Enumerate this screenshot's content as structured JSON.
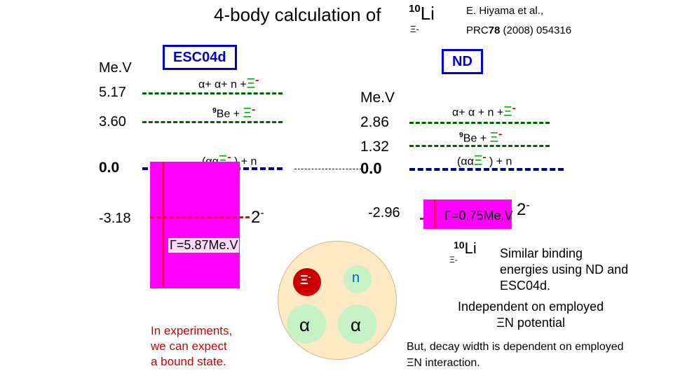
{
  "title": {
    "text": "4-body calculation of",
    "nucleus_mass": "10",
    "nucleus_symbol": "Li",
    "nucleus_sub": "Ξ-"
  },
  "reference": {
    "authors": "E. Hiyama et al.,",
    "journal_prefix": "PRC",
    "volume": "78",
    "pages_year": "(2008) 054316"
  },
  "left": {
    "label": "ESC04d",
    "unit": "Me.V",
    "levels": [
      {
        "energy": "5.17",
        "label": "α+ α+ n +",
        "xi": "Ξ",
        "xi_charge": "-"
      },
      {
        "energy": "3.60",
        "sup": "9",
        "label": "Be + ",
        "xi": "Ξ",
        "xi_charge": "-"
      },
      {
        "energy": "0.0",
        "label_pre": "(αα",
        "xi": "Ξ",
        "xi_charge": "-",
        "label_post": " ) + n"
      }
    ],
    "bound_energy": "-3.18",
    "spin": "2",
    "spin_sign": "-",
    "width_label": "Γ=5.87Me.V",
    "box_color": "#ff00ff"
  },
  "right": {
    "label": "ND",
    "unit": "Me.V",
    "levels": [
      {
        "energy": "2.86",
        "label": "α+ α + n +",
        "xi": "Ξ",
        "xi_charge": "-"
      },
      {
        "energy": "1.32",
        "sup": "9",
        "label": "Be + ",
        "xi": "Ξ",
        "xi_charge": "-"
      },
      {
        "energy": "0.0",
        "label_pre": "(αα",
        "xi": "Ξ",
        "xi_charge": "-",
        "label_post": " ) + n"
      }
    ],
    "bound_energy": "-2.96",
    "width_label": "Γ=0.75Me.V",
    "spin": "2",
    "spin_sign": "-",
    "box_color": "#ff00ff"
  },
  "cluster": {
    "xi": "Ξ",
    "xi_charge": "-",
    "n": "n",
    "alpha1": "α",
    "alpha2": "α",
    "bg_color": "#fde9c3",
    "particle_color": "#c6f2c6"
  },
  "experiment_note": "In experiments,\nwe can expect\na bound state.",
  "side_nucleus": {
    "mass": "10",
    "symbol": "Li",
    "sub": "Ξ-"
  },
  "summary": "Similar binding\nenergies using ND and\nESC04d.",
  "independent": "Independent on employed\nΞN potential",
  "decay": "But, decay width is dependent on employed\nΞN interaction."
}
